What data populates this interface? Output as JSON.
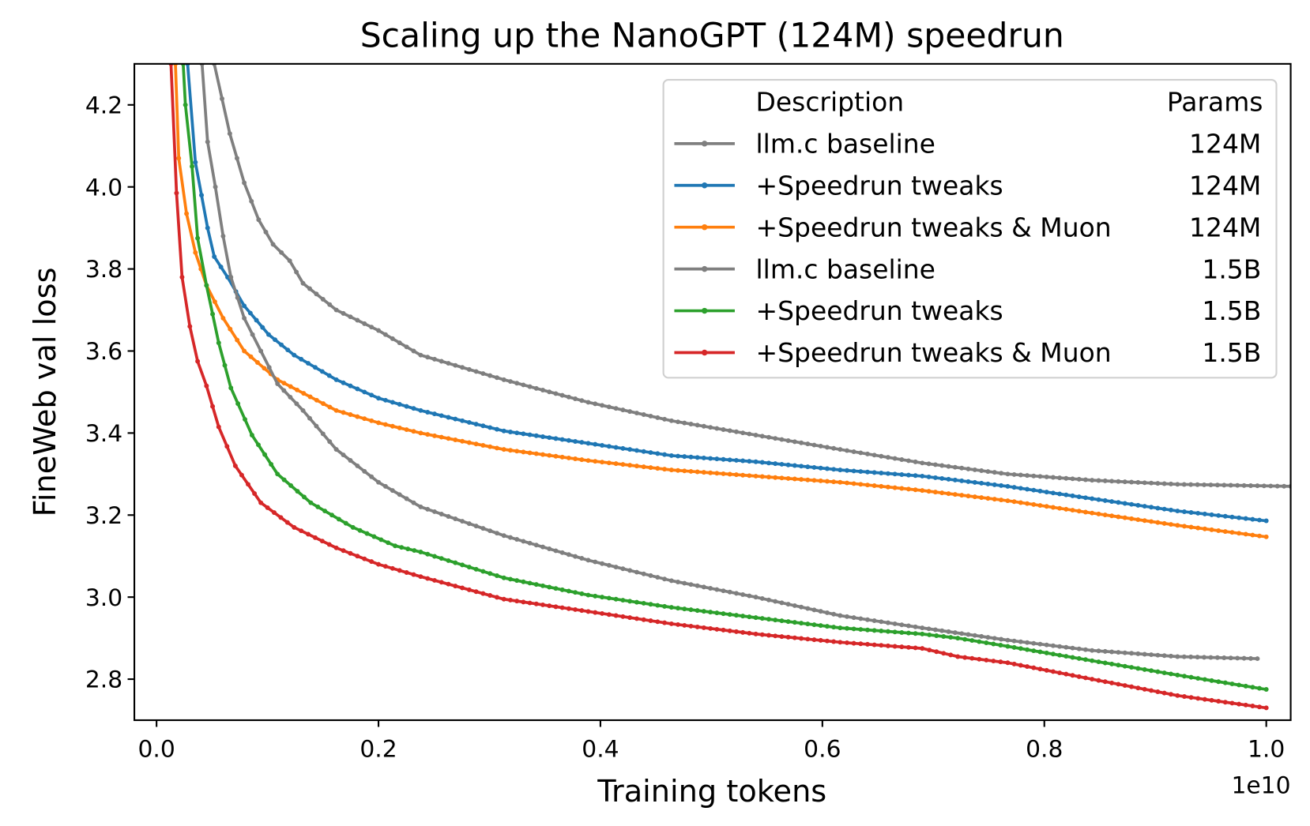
{
  "chart_data": {
    "type": "line",
    "title": "Scaling up the NanoGPT (124M) speedrun",
    "xlabel": "Training tokens",
    "ylabel": "FineWeb val loss",
    "x_offset_label": "1e10",
    "xlim": [
      -0.02,
      1.022
    ],
    "ylim": [
      2.7,
      4.3
    ],
    "x_scale": 10000000000.0,
    "xticks": [
      "0.0",
      "0.2",
      "0.4",
      "0.6",
      "0.8",
      "1.0"
    ],
    "yticks": [
      "2.8",
      "3.0",
      "3.2",
      "3.4",
      "3.6",
      "3.8",
      "4.0",
      "4.2"
    ],
    "grid": false,
    "legend": {
      "placement": "top-right",
      "header_description": "Description",
      "header_params": "Params"
    },
    "series": [
      {
        "name": "llm.c baseline",
        "params": "124M",
        "color": "#7f7f7f",
        "x": [
          0.052,
          0.066,
          0.079,
          0.092,
          0.105,
          0.12,
          0.132,
          0.162,
          0.2,
          0.238,
          0.313,
          0.389,
          0.464,
          0.54,
          0.616,
          0.69,
          0.767,
          0.843,
          0.92,
          1.022
        ],
        "y": [
          4.3,
          4.13,
          4.01,
          3.92,
          3.86,
          3.82,
          3.765,
          3.7,
          3.65,
          3.59,
          3.53,
          3.475,
          3.43,
          3.395,
          3.36,
          3.327,
          3.3,
          3.285,
          3.275,
          3.27
        ]
      },
      {
        "name": "+Speedrun tweaks",
        "params": "124M",
        "color": "#1f77b4",
        "x": [
          0.028,
          0.035,
          0.046,
          0.052,
          0.064,
          0.079,
          0.101,
          0.124,
          0.162,
          0.2,
          0.238,
          0.313,
          0.389,
          0.464,
          0.54,
          0.616,
          0.69,
          0.767,
          0.843,
          0.92,
          1.0
        ],
        "y": [
          4.3,
          4.06,
          3.9,
          3.83,
          3.78,
          3.71,
          3.64,
          3.59,
          3.53,
          3.485,
          3.455,
          3.405,
          3.375,
          3.345,
          3.33,
          3.31,
          3.295,
          3.27,
          3.24,
          3.21,
          3.186
        ]
      },
      {
        "name": "+Speedrun tweaks & Muon",
        "params": "124M",
        "color": "#ff7f0e",
        "x": [
          0.017,
          0.02,
          0.027,
          0.035,
          0.045,
          0.06,
          0.079,
          0.109,
          0.162,
          0.2,
          0.238,
          0.313,
          0.389,
          0.464,
          0.54,
          0.616,
          0.69,
          0.767,
          0.843,
          0.92,
          1.0
        ],
        "y": [
          4.3,
          4.07,
          3.935,
          3.84,
          3.76,
          3.68,
          3.6,
          3.53,
          3.455,
          3.425,
          3.4,
          3.36,
          3.333,
          3.31,
          3.295,
          3.28,
          3.26,
          3.235,
          3.205,
          3.175,
          3.147
        ]
      },
      {
        "name": "llm.c baseline",
        "params": "1.5B",
        "color": "#7f7f7f",
        "x": [
          0.041,
          0.046,
          0.053,
          0.06,
          0.067,
          0.079,
          0.094,
          0.109,
          0.132,
          0.162,
          0.2,
          0.238,
          0.313,
          0.389,
          0.464,
          0.54,
          0.616,
          0.69,
          0.767,
          0.843,
          0.92,
          0.992
        ],
        "y": [
          4.3,
          4.11,
          4.0,
          3.88,
          3.78,
          3.68,
          3.6,
          3.52,
          3.455,
          3.36,
          3.28,
          3.22,
          3.15,
          3.09,
          3.04,
          3.0,
          2.955,
          2.925,
          2.895,
          2.87,
          2.855,
          2.85
        ]
      },
      {
        "name": "+Speedrun tweaks",
        "params": "1.5B",
        "color": "#2ca02c",
        "x": [
          0.024,
          0.026,
          0.032,
          0.037,
          0.045,
          0.056,
          0.067,
          0.086,
          0.109,
          0.139,
          0.177,
          0.215,
          0.238,
          0.313,
          0.389,
          0.464,
          0.54,
          0.616,
          0.69,
          0.722,
          0.767,
          0.843,
          0.92,
          1.0
        ],
        "y": [
          4.3,
          4.2,
          4.05,
          3.875,
          3.76,
          3.62,
          3.51,
          3.395,
          3.3,
          3.23,
          3.17,
          3.125,
          3.11,
          3.047,
          3.005,
          2.975,
          2.95,
          2.925,
          2.91,
          2.9,
          2.88,
          2.845,
          2.81,
          2.775
        ]
      },
      {
        "name": "+Speedrun tweaks & Muon",
        "params": "1.5B",
        "color": "#d62728",
        "x": [
          0.013,
          0.018,
          0.023,
          0.03,
          0.037,
          0.045,
          0.056,
          0.071,
          0.094,
          0.124,
          0.162,
          0.2,
          0.238,
          0.313,
          0.389,
          0.464,
          0.54,
          0.616,
          0.69,
          0.722,
          0.767,
          0.843,
          0.92,
          1.0
        ],
        "y": [
          4.3,
          3.985,
          3.78,
          3.66,
          3.575,
          3.515,
          3.415,
          3.32,
          3.23,
          3.17,
          3.12,
          3.08,
          3.05,
          2.995,
          2.965,
          2.935,
          2.91,
          2.89,
          2.875,
          2.855,
          2.84,
          2.8,
          2.76,
          2.73
        ]
      }
    ]
  }
}
